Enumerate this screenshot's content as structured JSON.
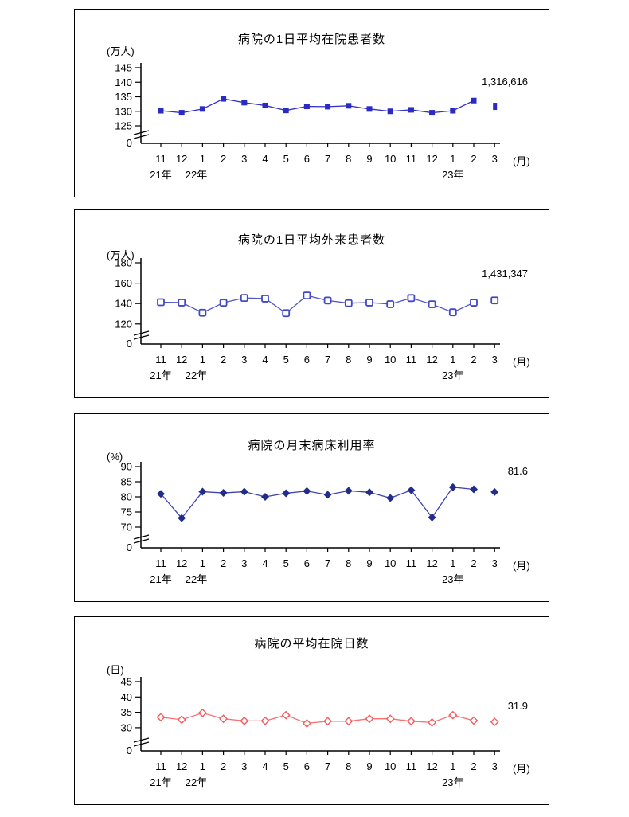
{
  "chart_data": [
    {
      "type": "line",
      "title": "病院の1日平均在院患者数",
      "ylabel_unit": "(万人)",
      "xlabel_unit": "(月)",
      "latest_value_label": "1,316,616",
      "x": [
        "11",
        "12",
        "1",
        "2",
        "3",
        "4",
        "5",
        "6",
        "7",
        "8",
        "9",
        "10",
        "11",
        "12",
        "1",
        "2",
        "3"
      ],
      "year_labels": [
        {
          "label": "21年",
          "anchor_index": 0
        },
        {
          "label": "22年",
          "anchor_index": 1.7
        },
        {
          "label": "23年",
          "anchor_index": 14
        }
      ],
      "y_ticks": [
        145,
        140,
        135,
        130,
        125
      ],
      "y_zero_label": "0",
      "y_axis_break": true,
      "ylim_displayed": [
        125,
        145
      ],
      "values": [
        130.2,
        129.5,
        130.8,
        134.3,
        133.0,
        132.0,
        130.3,
        131.7,
        131.6,
        131.9,
        130.8,
        130.0,
        130.5,
        129.5,
        130.2,
        133.7,
        131.7
      ],
      "marker": "filled-square",
      "colors": {
        "line": "#3333CC",
        "marker": "#2A2AC4"
      },
      "last_point_detached": true,
      "last_marker_clipped": true
    },
    {
      "type": "line",
      "title": "病院の1日平均外来患者数",
      "ylabel_unit": "(万人)",
      "xlabel_unit": "(月)",
      "latest_value_label": "1,431,347",
      "x": [
        "11",
        "12",
        "1",
        "2",
        "3",
        "4",
        "5",
        "6",
        "7",
        "8",
        "9",
        "10",
        "11",
        "12",
        "1",
        "2",
        "3"
      ],
      "year_labels": [
        {
          "label": "21年",
          "anchor_index": 0
        },
        {
          "label": "22年",
          "anchor_index": 1.7
        },
        {
          "label": "23年",
          "anchor_index": 14
        }
      ],
      "y_ticks": [
        180,
        160,
        140,
        120
      ],
      "y_zero_label": "0",
      "y_axis_break": true,
      "ylim_displayed": [
        120,
        180
      ],
      "values": [
        141.3,
        141.0,
        131.0,
        140.8,
        145.5,
        144.9,
        130.6,
        147.9,
        143.0,
        140.4,
        141.0,
        139.4,
        145.4,
        139.3,
        131.4,
        140.9,
        143.1
      ],
      "marker": "open-square",
      "colors": {
        "line": "#5058C8",
        "marker": "#4348C4"
      },
      "last_point_detached": true,
      "last_marker_clipped": false
    },
    {
      "type": "line",
      "title": "病院の月末病床利用率",
      "ylabel_unit": "(%)",
      "xlabel_unit": "(月)",
      "latest_value_label": "81.6",
      "x": [
        "11",
        "12",
        "1",
        "2",
        "3",
        "4",
        "5",
        "6",
        "7",
        "8",
        "9",
        "10",
        "11",
        "12",
        "1",
        "2",
        "3"
      ],
      "year_labels": [
        {
          "label": "21年",
          "anchor_index": 0
        },
        {
          "label": "22年",
          "anchor_index": 1.7
        },
        {
          "label": "23年",
          "anchor_index": 14
        }
      ],
      "y_ticks": [
        90,
        85,
        80,
        75,
        70
      ],
      "y_zero_label": "0",
      "y_axis_break": true,
      "ylim_displayed": [
        70,
        90
      ],
      "values": [
        81.0,
        73.0,
        81.7,
        81.3,
        81.7,
        80.0,
        81.2,
        81.9,
        80.7,
        82.0,
        81.5,
        79.6,
        82.2,
        73.2,
        83.2,
        82.5,
        81.6
      ],
      "marker": "filled-diamond",
      "colors": {
        "line": "#3C44B0",
        "marker": "#232C8B"
      },
      "last_point_detached": true,
      "last_marker_clipped": false
    },
    {
      "type": "line",
      "title": "病院の平均在院日数",
      "ylabel_unit": "(日)",
      "xlabel_unit": "(月)",
      "latest_value_label": "31.9",
      "x": [
        "11",
        "12",
        "1",
        "2",
        "3",
        "4",
        "5",
        "6",
        "7",
        "8",
        "9",
        "10",
        "11",
        "12",
        "1",
        "2",
        "3"
      ],
      "year_labels": [
        {
          "label": "21年",
          "anchor_index": 0
        },
        {
          "label": "22年",
          "anchor_index": 1.7
        },
        {
          "label": "23年",
          "anchor_index": 14
        }
      ],
      "y_ticks": [
        45,
        40,
        35,
        30
      ],
      "y_zero_label": "0",
      "y_axis_break": true,
      "ylim_displayed": [
        30,
        45
      ],
      "values": [
        33.4,
        32.6,
        34.8,
        32.9,
        32.2,
        32.2,
        34.1,
        31.4,
        32.1,
        32.1,
        32.9,
        32.9,
        32.1,
        31.7,
        34.1,
        32.3,
        31.9
      ],
      "marker": "open-diamond",
      "colors": {
        "line": "#F87070",
        "marker": "#F75B5B"
      },
      "last_point_detached": true,
      "last_marker_clipped": false
    }
  ]
}
